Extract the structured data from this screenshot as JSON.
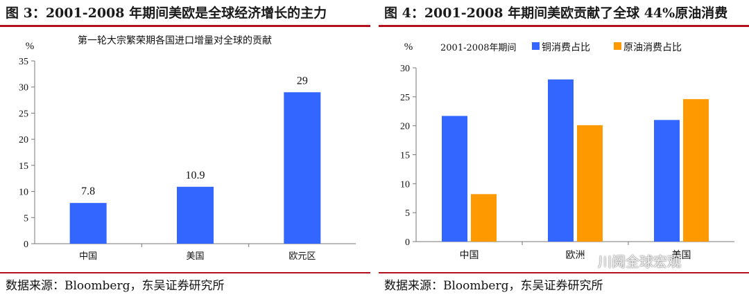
{
  "panels": {
    "left": {
      "title": "图 3：2001-2008 年期间美欧是全球经济增长的主力",
      "source": "数据来源：Bloomberg，东吴证券研究所"
    },
    "right": {
      "title": "图 4：2001-2008 年期间美欧贡献了全球 44%原油消费",
      "source": "数据来源：Bloomberg，东吴证券研究所"
    }
  },
  "watermark": {
    "text": "川阅全球宏观",
    "icon": "wechat-icon"
  },
  "colors": {
    "blue": "#3366ff",
    "orange": "#ff9900",
    "rule": "#b40f1e"
  },
  "chart_data": [
    {
      "type": "bar",
      "title": "第一轮大宗繁荣期各国进口增量对全球的贡献",
      "unit": "%",
      "categories": [
        "中国",
        "美国",
        "欧元区"
      ],
      "values": [
        7.8,
        10.9,
        29
      ],
      "data_labels": [
        "7.8",
        "10.9",
        "29"
      ],
      "ylim": [
        0,
        35
      ],
      "yticks": [
        0,
        5,
        10,
        15,
        20,
        25,
        30,
        35
      ],
      "colors": [
        "#3366ff"
      ],
      "grid": false
    },
    {
      "type": "bar",
      "title": "",
      "unit": "%",
      "legend_title": "2001-2008年期间",
      "legend_position": "top",
      "categories": [
        "中国",
        "欧洲",
        "美国"
      ],
      "series": [
        {
          "name": "铜消费占比",
          "values": [
            21.7,
            28,
            21
          ],
          "color": "#3366ff"
        },
        {
          "name": "原油消费占比",
          "values": [
            8.2,
            20.1,
            24.6
          ],
          "color": "#ff9900"
        }
      ],
      "ylim": [
        0,
        30
      ],
      "yticks": [
        0,
        5,
        10,
        15,
        20,
        25,
        30
      ],
      "grid": false
    }
  ]
}
